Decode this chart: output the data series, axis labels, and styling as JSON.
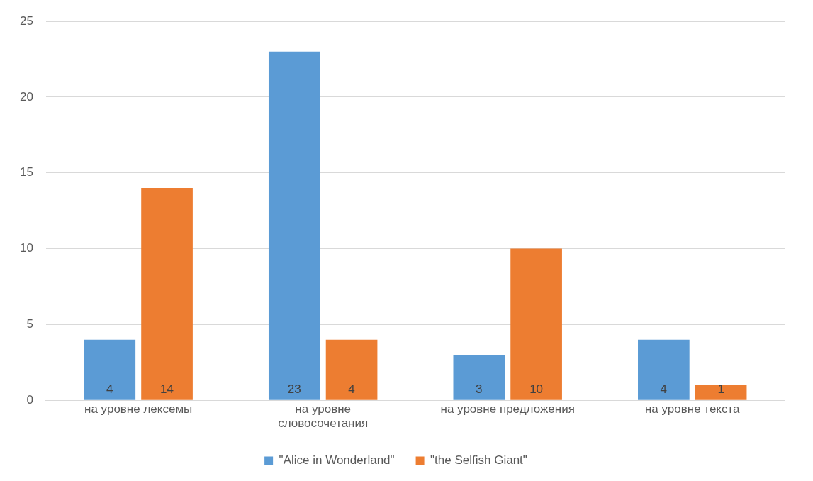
{
  "chart_data": {
    "type": "bar",
    "categories": [
      "на уровне лексемы",
      "на уровне словосочетания",
      "на уровне предложения",
      "на уровне текста"
    ],
    "series": [
      {
        "name": "\"Alice in Wonderland\"",
        "color": "#5b9bd5",
        "values": [
          4,
          23,
          3,
          4
        ]
      },
      {
        "name": "\"the Selfish Giant\"",
        "color": "#ed7d31",
        "values": [
          14,
          4,
          10,
          1
        ]
      }
    ],
    "ylim": [
      0,
      25
    ],
    "yticks": [
      0,
      5,
      10,
      15,
      20,
      25
    ],
    "grid": "y",
    "legend": "bottom",
    "data_labels": true
  }
}
